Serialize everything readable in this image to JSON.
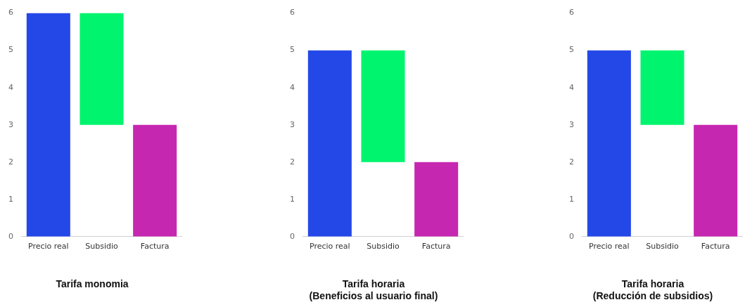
{
  "chart_data": [
    {
      "type": "bar",
      "title": "Tarifa monomia",
      "categories": [
        "Precio real",
        "Subsidio",
        "Factura"
      ],
      "values": [
        6,
        3,
        3
      ],
      "base": [
        0,
        3,
        0
      ],
      "colors": [
        "#2448e8",
        "#00f46e",
        "#c627b0"
      ],
      "ylim": [
        0,
        6
      ],
      "yticks": [
        0,
        1,
        2,
        3,
        4,
        5,
        6
      ],
      "grid": false,
      "legend": false
    },
    {
      "type": "bar",
      "title": "Tarifa horaria\n(Beneficios al usuario final)",
      "categories": [
        "Precio real",
        "Subsidio",
        "Factura"
      ],
      "values": [
        5,
        3,
        2
      ],
      "base": [
        0,
        2,
        0
      ],
      "colors": [
        "#2448e8",
        "#00f46e",
        "#c627b0"
      ],
      "ylim": [
        0,
        6
      ],
      "yticks": [
        0,
        1,
        2,
        3,
        4,
        5,
        6
      ],
      "grid": false,
      "legend": false
    },
    {
      "type": "bar",
      "title": "Tarifa horaria\n(Reducción de subsidios)",
      "categories": [
        "Precio real",
        "Subsidio",
        "Factura"
      ],
      "values": [
        5,
        2,
        3
      ],
      "base": [
        0,
        3,
        0
      ],
      "colors": [
        "#2448e8",
        "#00f46e",
        "#c627b0"
      ],
      "ylim": [
        0,
        6
      ],
      "yticks": [
        0,
        1,
        2,
        3,
        4,
        5,
        6
      ],
      "grid": false,
      "legend": false
    }
  ]
}
